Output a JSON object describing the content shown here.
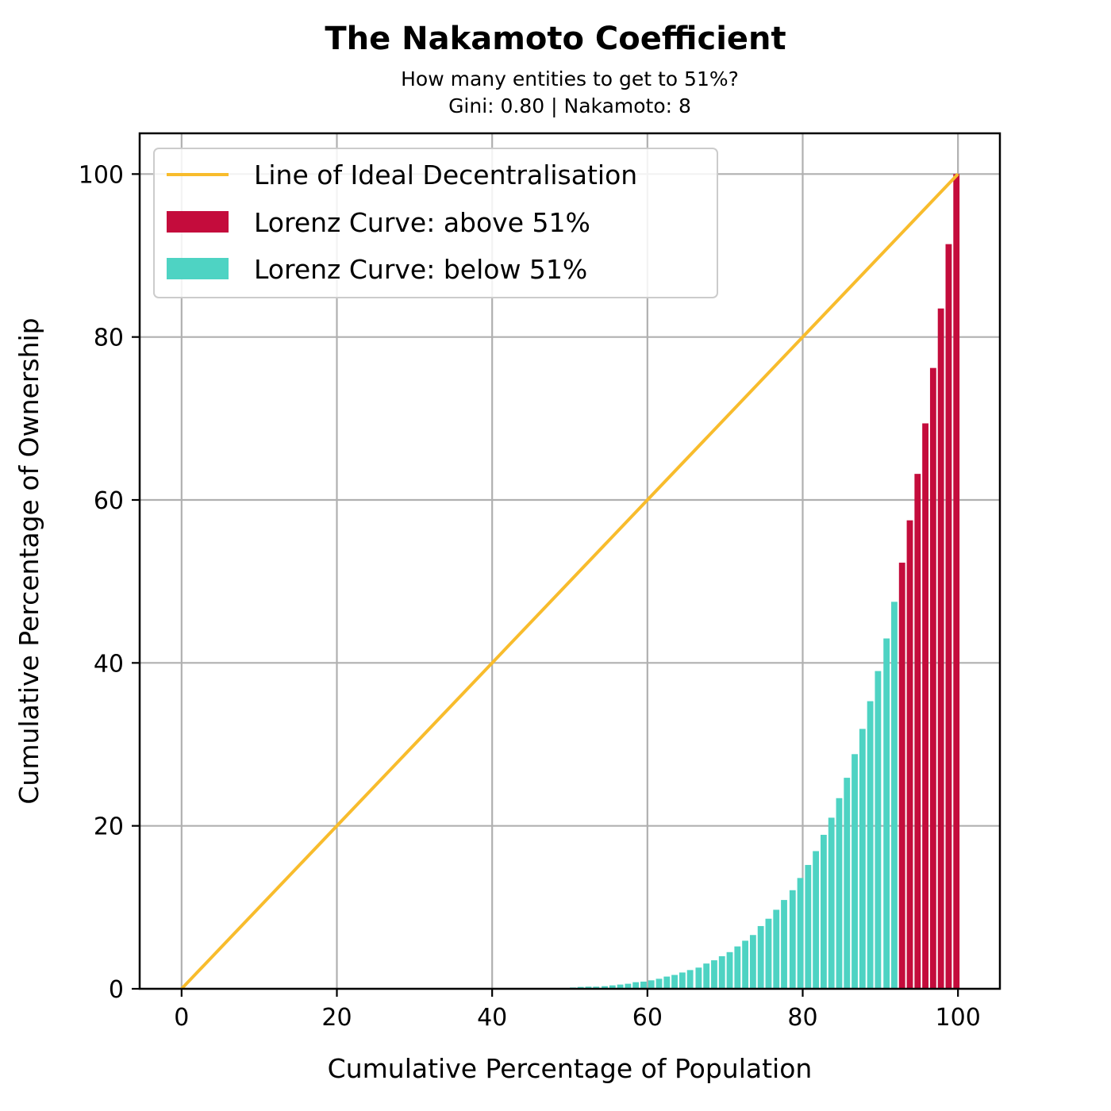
{
  "chart_data": {
    "type": "bar",
    "title": "The Nakamoto Coefficient",
    "subtitle_lines": [
      "How many entities to get to 51%?",
      "Gini: 0.80 | Nakamoto: 8"
    ],
    "xlabel": "Cumulative Percentage of Population",
    "ylabel": "Cumulative Percentage of Ownership",
    "xlim": [
      -5.4,
      105.4
    ],
    "ylim": [
      0,
      105
    ],
    "xticks": [
      0,
      20,
      40,
      60,
      80,
      100
    ],
    "xtick_labels": [
      "0",
      "20",
      "40",
      "60",
      "80",
      "100"
    ],
    "yticks": [
      0,
      20,
      40,
      60,
      80,
      100
    ],
    "ytick_labels": [
      "0",
      "20",
      "40",
      "60",
      "80",
      "100"
    ],
    "grid": true,
    "legend_position": "top-left",
    "ideal_line": {
      "name": "Line of Ideal Decentralisation",
      "x": [
        0,
        100
      ],
      "y": [
        0,
        100
      ],
      "color": "#f8bc2c"
    },
    "series": [
      {
        "name": "Lorenz Curve: above 51%",
        "color": "#c40c3c",
        "x": [
          92.8,
          93.8,
          94.8,
          95.8,
          96.8,
          97.8,
          98.8,
          99.8
        ],
        "values": [
          52.3,
          57.5,
          63.2,
          69.4,
          76.2,
          83.5,
          91.4,
          100
        ]
      },
      {
        "name": "Lorenz Curve: below 51%",
        "color": "#4ed3c3",
        "x": [
          47.4,
          48.4,
          49.4,
          50.4,
          51.4,
          52.4,
          53.4,
          54.5,
          55.5,
          56.5,
          57.5,
          58.5,
          59.5,
          60.5,
          61.5,
          62.5,
          63.5,
          64.5,
          65.5,
          66.6,
          67.6,
          68.6,
          69.6,
          70.6,
          71.6,
          72.6,
          73.6,
          74.6,
          75.6,
          76.6,
          77.6,
          78.7,
          79.7,
          80.7,
          81.7,
          82.7,
          83.7,
          84.7,
          85.7,
          86.7,
          87.7,
          88.7,
          89.7,
          90.8,
          91.8
        ],
        "values": [
          0.06,
          0.06,
          0.1,
          0.16,
          0.23,
          0.26,
          0.26,
          0.32,
          0.42,
          0.52,
          0.62,
          0.81,
          0.88,
          1.04,
          1.23,
          1.5,
          1.7,
          2.0,
          2.3,
          2.6,
          3.1,
          3.5,
          4.0,
          4.5,
          5.2,
          5.9,
          6.6,
          7.7,
          8.6,
          9.7,
          10.9,
          12.1,
          13.6,
          15.2,
          16.9,
          18.9,
          21.0,
          23.4,
          25.9,
          28.8,
          31.9,
          35.3,
          39.0,
          43.0,
          47.5
        ]
      }
    ]
  }
}
